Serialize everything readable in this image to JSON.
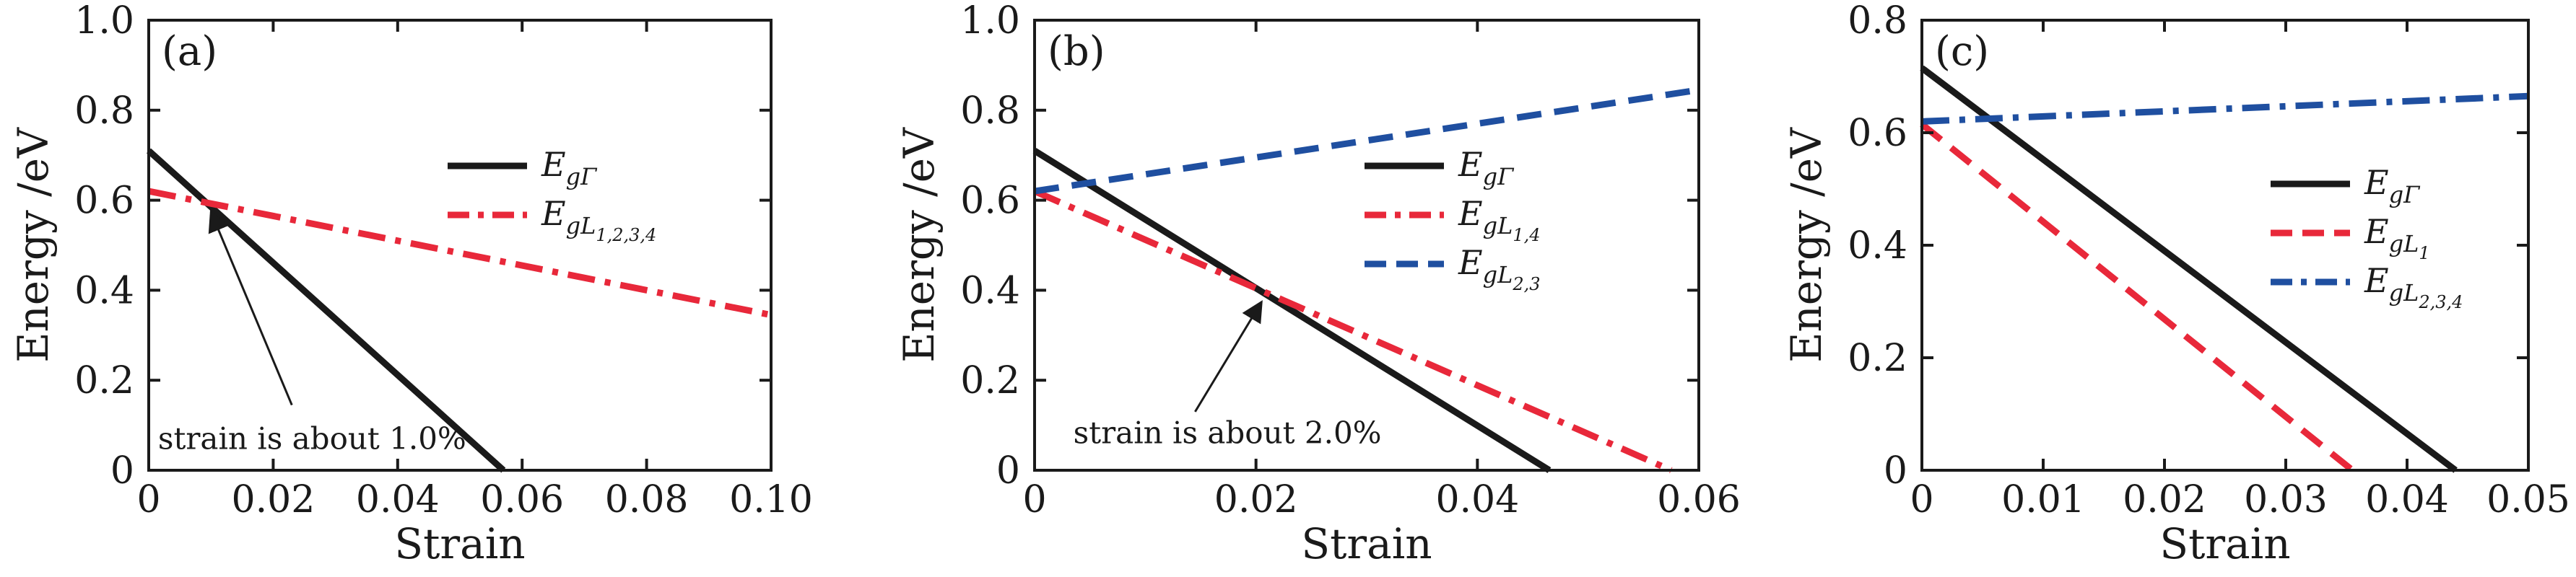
{
  "chart_data": [
    {
      "type": "line",
      "panel_label": "(a)",
      "xlabel": "Strain",
      "ylabel": "Energy /eV",
      "xlim": [
        0,
        0.1
      ],
      "ylim": [
        0,
        1.0
      ],
      "xticks": [
        0,
        0.02,
        0.04,
        0.06,
        0.08,
        0.1
      ],
      "xtick_labels": [
        "0",
        "0.02",
        "0.04",
        "0.06",
        "0.08",
        "0.10"
      ],
      "yticks": [
        0,
        0.2,
        0.4,
        0.6,
        0.8,
        1.0
      ],
      "ytick_labels": [
        "0",
        "0.2",
        "0.4",
        "0.6",
        "0.8",
        "1.0"
      ],
      "legend_position": "center-right",
      "series": [
        {
          "name": "E_gΓ",
          "legend": {
            "main": "E",
            "sub": "gΓ",
            "subsub": ""
          },
          "color": "#1a1a1a",
          "style": "solid",
          "x": [
            0,
            0.057
          ],
          "y": [
            0.71,
            0
          ]
        },
        {
          "name": "E_gL1,2,3,4",
          "legend": {
            "main": "E",
            "sub": "gL",
            "subsub": "1,2,3,4"
          },
          "color": "#e8283a",
          "style": "dashdot",
          "x": [
            0,
            0.1
          ],
          "y": [
            0.62,
            0.345
          ]
        }
      ],
      "annotation": {
        "text": "strain is about 1.0%",
        "point": [
          0.01,
          0.59
        ],
        "text_pos": [
          0.0015,
          0.047
        ],
        "tail": [
          0.023,
          0.145
        ]
      }
    },
    {
      "type": "line",
      "panel_label": "(b)",
      "xlabel": "Strain",
      "ylabel": "Energy /eV",
      "xlim": [
        0,
        0.06
      ],
      "ylim": [
        0,
        1.0
      ],
      "xticks": [
        0,
        0.02,
        0.04,
        0.06
      ],
      "xtick_labels": [
        "0",
        "0.02",
        "0.04",
        "0.06"
      ],
      "yticks": [
        0,
        0.2,
        0.4,
        0.6,
        0.8,
        1.0
      ],
      "ytick_labels": [
        "0",
        "0.2",
        "0.4",
        "0.6",
        "0.8",
        "1.0"
      ],
      "legend_position": "center-right",
      "series": [
        {
          "name": "E_gΓ",
          "legend": {
            "main": "E",
            "sub": "gΓ",
            "subsub": ""
          },
          "color": "#1a1a1a",
          "style": "solid",
          "x": [
            0,
            0.0465
          ],
          "y": [
            0.71,
            0
          ]
        },
        {
          "name": "E_gL1,4",
          "legend": {
            "main": "E",
            "sub": "gL",
            "subsub": "1,4"
          },
          "color": "#e8283a",
          "style": "dashdot",
          "x": [
            0,
            0.0575
          ],
          "y": [
            0.62,
            0
          ]
        },
        {
          "name": "E_gL2,3",
          "legend": {
            "main": "E",
            "sub": "gL",
            "subsub": "2,3"
          },
          "color": "#1f4fa0",
          "style": "dashed",
          "x": [
            0,
            0.06
          ],
          "y": [
            0.62,
            0.845
          ]
        }
      ],
      "annotation": {
        "text": "strain is about 2.0%",
        "point": [
          0.0205,
          0.39
        ],
        "text_pos": [
          0.0035,
          0.06
        ],
        "tail": [
          0.0145,
          0.13
        ]
      }
    },
    {
      "type": "line",
      "panel_label": "(c)",
      "xlabel": "Strain",
      "ylabel": "Energy /eV",
      "xlim": [
        0,
        0.05
      ],
      "ylim": [
        0,
        0.8
      ],
      "xticks": [
        0,
        0.01,
        0.02,
        0.03,
        0.04,
        0.05
      ],
      "xtick_labels": [
        "0",
        "0.01",
        "0.02",
        "0.03",
        "0.04",
        "0.05"
      ],
      "yticks": [
        0,
        0.2,
        0.4,
        0.6,
        0.8
      ],
      "ytick_labels": [
        "0",
        "0.2",
        "0.4",
        "0.6",
        "0.8"
      ],
      "legend_position": "center-right",
      "series": [
        {
          "name": "E_gΓ",
          "legend": {
            "main": "E",
            "sub": "gΓ",
            "subsub": ""
          },
          "color": "#1a1a1a",
          "style": "solid",
          "x": [
            0,
            0.044
          ],
          "y": [
            0.715,
            0
          ]
        },
        {
          "name": "E_gL1",
          "legend": {
            "main": "E",
            "sub": "gL",
            "subsub": "1"
          },
          "color": "#e8283a",
          "style": "dashed",
          "x": [
            0,
            0.0355
          ],
          "y": [
            0.615,
            0
          ]
        },
        {
          "name": "E_gL2,3,4",
          "legend": {
            "main": "E",
            "sub": "gL",
            "subsub": "2,3,4"
          },
          "color": "#1f4fa0",
          "style": "dashdot",
          "x": [
            0,
            0.05
          ],
          "y": [
            0.62,
            0.665
          ]
        }
      ]
    }
  ]
}
